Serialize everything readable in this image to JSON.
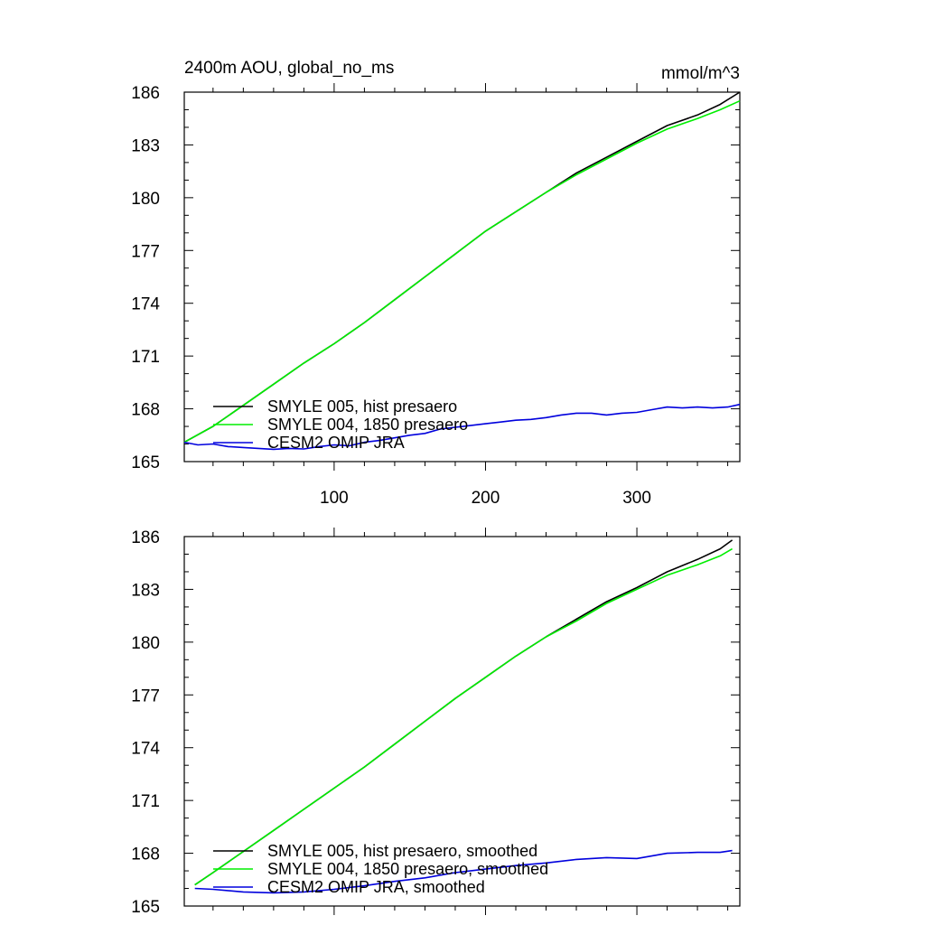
{
  "header": {
    "title": "2400m AOU, global_no_ms",
    "units": "mmol/m^3"
  },
  "chart_data": [
    {
      "type": "line",
      "title": "2400m AOU, global_no_ms",
      "units": "mmol/m^3",
      "xlim": [
        1,
        368
      ],
      "ylim": [
        165,
        186
      ],
      "xticks": [
        100,
        200,
        300
      ],
      "xtick_labels": [
        "100",
        "200",
        "300"
      ],
      "yticks": [
        165,
        168,
        171,
        174,
        177,
        180,
        183,
        186
      ],
      "ytick_labels": [
        "165",
        "168",
        "171",
        "174",
        "177",
        "180",
        "183",
        "186"
      ],
      "legend_position": "bottom-left",
      "series": [
        {
          "name": "SMYLE 005, hist presaero",
          "color": "#000000",
          "x": [
            1,
            20,
            40,
            60,
            80,
            100,
            120,
            140,
            160,
            180,
            200,
            220,
            240,
            260,
            280,
            300,
            320,
            340,
            355,
            368
          ],
          "y": [
            166.1,
            167.0,
            168.2,
            169.4,
            170.6,
            171.7,
            172.9,
            174.2,
            175.5,
            176.8,
            178.1,
            179.2,
            180.3,
            181.4,
            182.3,
            183.2,
            184.1,
            184.7,
            185.3,
            186.0
          ]
        },
        {
          "name": "SMYLE 004, 1850 presaero",
          "color": "#00ee00",
          "x": [
            1,
            20,
            40,
            60,
            80,
            100,
            120,
            140,
            160,
            180,
            200,
            220,
            240,
            260,
            280,
            300,
            320,
            340,
            355,
            368
          ],
          "y": [
            166.1,
            167.0,
            168.2,
            169.4,
            170.6,
            171.7,
            172.9,
            174.2,
            175.5,
            176.8,
            178.1,
            179.2,
            180.3,
            181.3,
            182.2,
            183.1,
            183.9,
            184.5,
            185.0,
            185.5
          ]
        },
        {
          "name": "CESM2 OMIP JRA",
          "color": "#0000dd",
          "x": [
            1,
            10,
            20,
            30,
            40,
            50,
            60,
            70,
            80,
            90,
            100,
            110,
            120,
            130,
            140,
            150,
            160,
            170,
            180,
            190,
            200,
            210,
            220,
            230,
            240,
            250,
            260,
            270,
            280,
            290,
            300,
            310,
            320,
            330,
            340,
            350,
            360,
            368
          ],
          "y": [
            166.1,
            165.95,
            166.0,
            165.85,
            165.8,
            165.75,
            165.7,
            165.75,
            165.72,
            165.85,
            165.95,
            165.9,
            166.1,
            166.2,
            166.35,
            166.5,
            166.6,
            166.85,
            166.95,
            167.05,
            167.15,
            167.25,
            167.35,
            167.4,
            167.5,
            167.65,
            167.75,
            167.75,
            167.65,
            167.75,
            167.8,
            167.95,
            168.1,
            168.05,
            168.1,
            168.05,
            168.1,
            168.25
          ]
        }
      ]
    },
    {
      "type": "line",
      "xlim": [
        1,
        368
      ],
      "ylim": [
        165,
        186
      ],
      "xticks": [
        100,
        200,
        300
      ],
      "yticks": [
        165,
        168,
        171,
        174,
        177,
        180,
        183,
        186
      ],
      "ytick_labels": [
        "165",
        "168",
        "171",
        "174",
        "177",
        "180",
        "183",
        "186"
      ],
      "legend_position": "bottom-left",
      "series": [
        {
          "name": "SMYLE 005, hist presaero, smoothed",
          "color": "#000000",
          "x": [
            8,
            20,
            40,
            60,
            80,
            100,
            120,
            140,
            160,
            180,
            200,
            220,
            240,
            260,
            280,
            300,
            320,
            340,
            355,
            363
          ],
          "y": [
            166.2,
            166.9,
            168.1,
            169.3,
            170.5,
            171.7,
            172.9,
            174.2,
            175.5,
            176.8,
            178.0,
            179.2,
            180.3,
            181.3,
            182.3,
            183.1,
            184.0,
            184.7,
            185.3,
            185.8
          ]
        },
        {
          "name": "SMYLE 004, 1850 presaero, smoothed",
          "color": "#00ee00",
          "x": [
            8,
            20,
            40,
            60,
            80,
            100,
            120,
            140,
            160,
            180,
            200,
            220,
            240,
            260,
            280,
            300,
            320,
            340,
            355,
            363
          ],
          "y": [
            166.2,
            166.9,
            168.1,
            169.3,
            170.5,
            171.7,
            172.9,
            174.2,
            175.5,
            176.8,
            178.0,
            179.2,
            180.3,
            181.2,
            182.2,
            183.0,
            183.8,
            184.4,
            184.9,
            185.3
          ]
        },
        {
          "name": "CESM2 OMIP JRA, smoothed",
          "color": "#0000dd",
          "x": [
            8,
            20,
            40,
            60,
            80,
            100,
            120,
            140,
            160,
            180,
            200,
            220,
            240,
            260,
            280,
            300,
            320,
            340,
            355,
            363
          ],
          "y": [
            166.0,
            165.95,
            165.8,
            165.75,
            165.8,
            165.95,
            166.15,
            166.4,
            166.6,
            166.9,
            167.1,
            167.3,
            167.45,
            167.65,
            167.75,
            167.7,
            168.0,
            168.05,
            168.05,
            168.15
          ]
        }
      ]
    }
  ]
}
